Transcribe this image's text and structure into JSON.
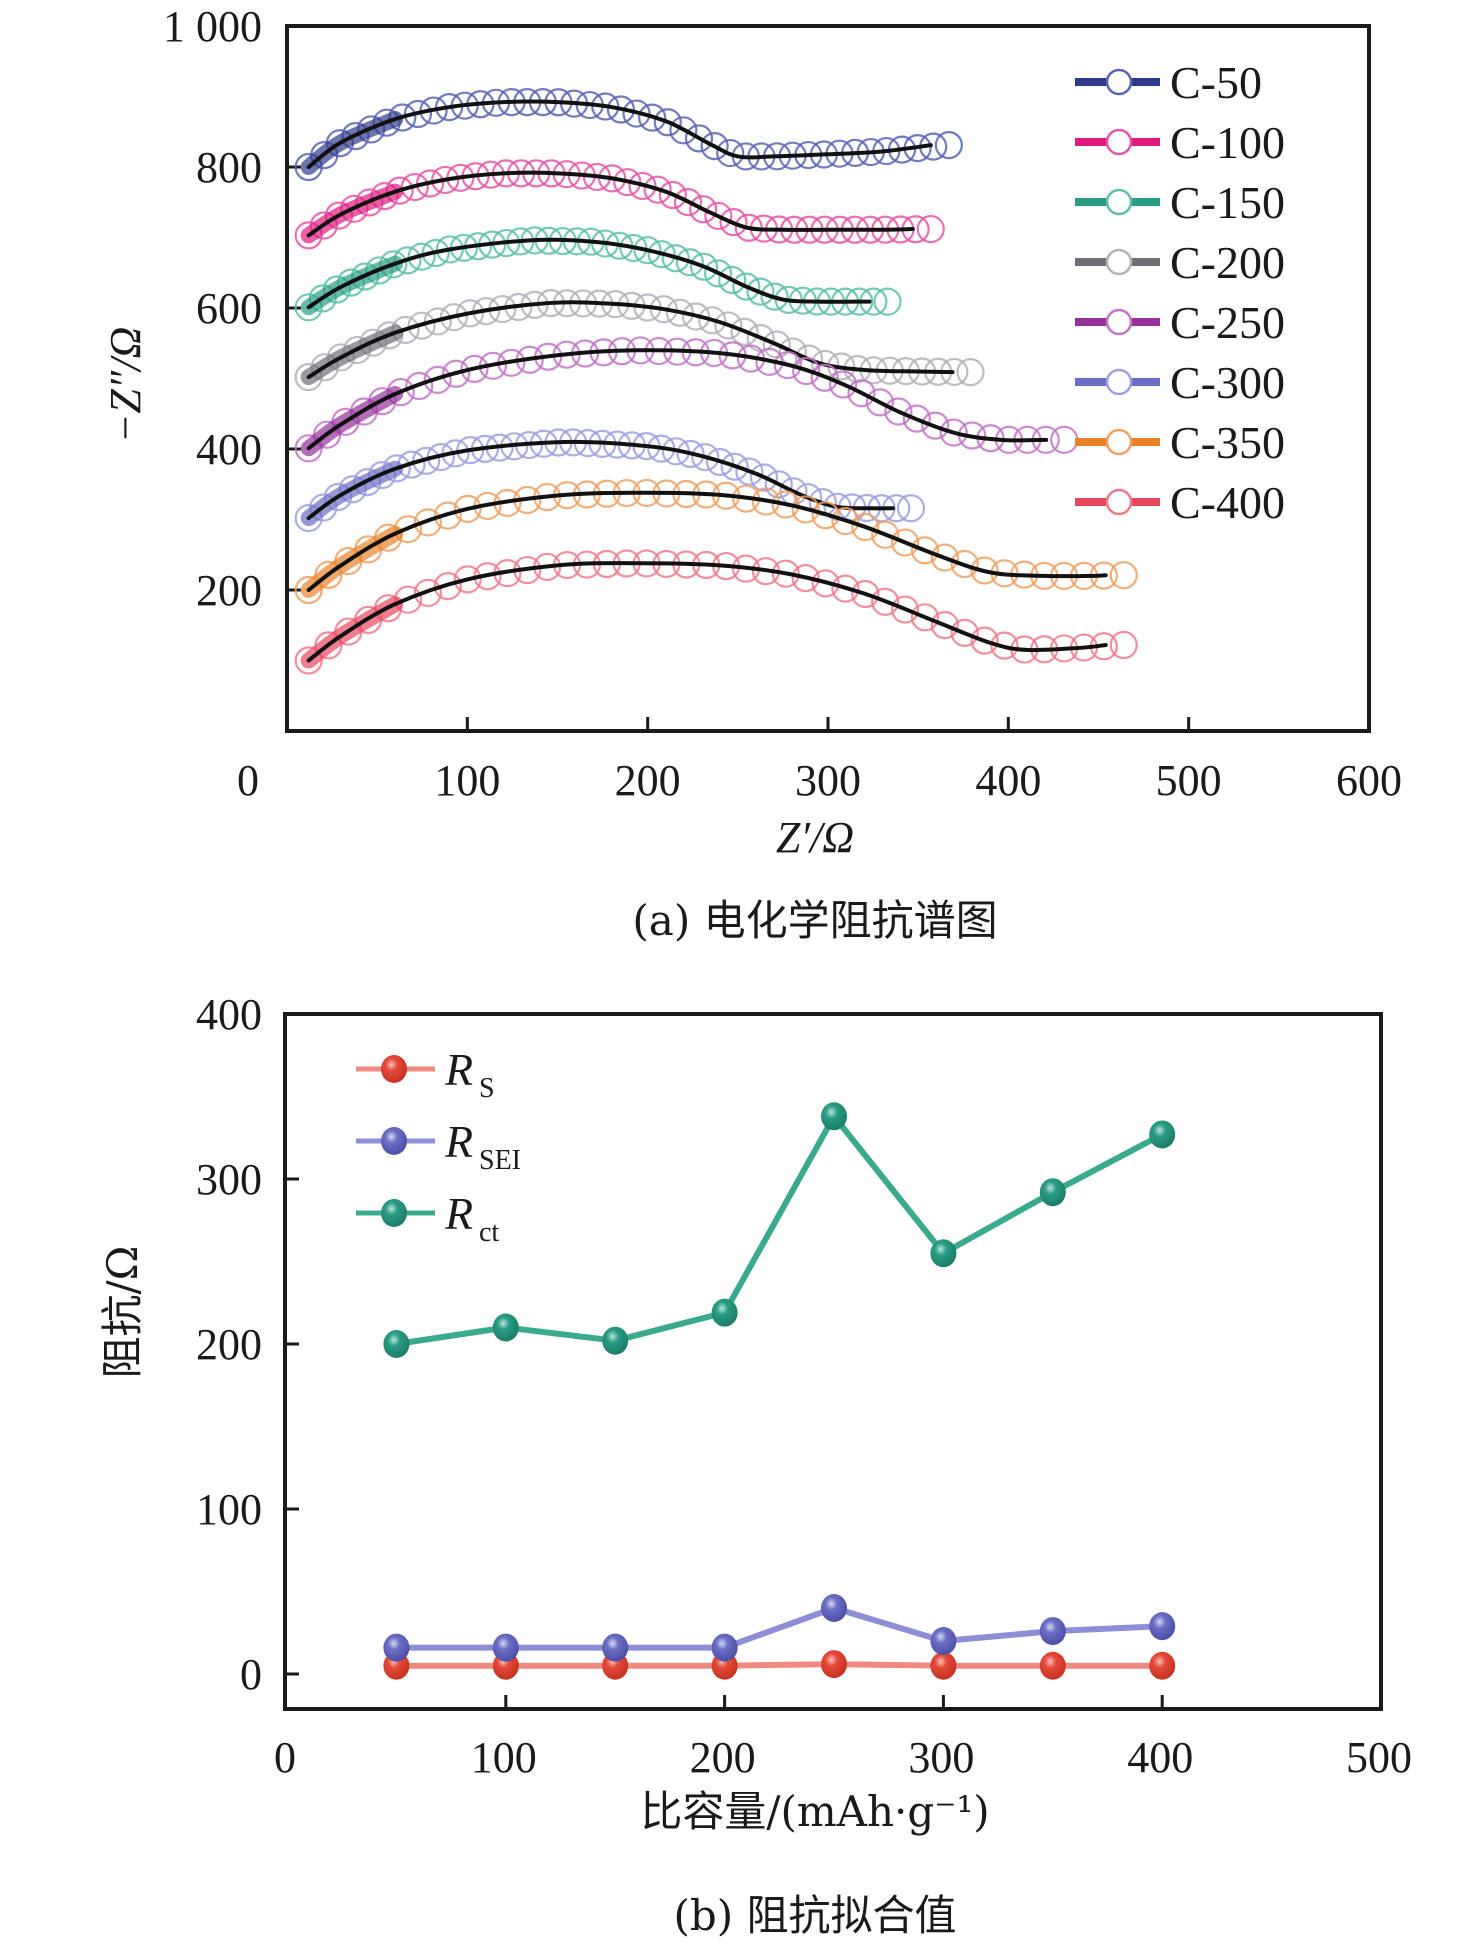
{
  "chart_data": [
    {
      "id": "a",
      "type": "line",
      "caption": "(a) 电化学阻抗谱图",
      "title": "",
      "xlabel": "Z′/Ω",
      "ylabel": "−Z″/Ω",
      "xlim": [
        0,
        600
      ],
      "ylim": [
        0,
        1000
      ],
      "xticks": [
        0,
        100,
        200,
        300,
        400,
        500,
        600
      ],
      "xtick_labels": [
        "0",
        "100",
        "200",
        "300",
        "400",
        "500",
        "600"
      ],
      "yticks": [
        200,
        400,
        600,
        800,
        1000
      ],
      "ytick_labels": [
        "200",
        "400",
        "600",
        "800",
        "1 000"
      ],
      "grid": false,
      "legend_position": "top-right",
      "marker": "open-circle",
      "fit_line_color": "#111111",
      "series": [
        {
          "name": "C-50",
          "color": "#2e3a8c",
          "marker_color": "#5a64b4",
          "x": [
            12,
            30,
            60,
            90,
            120,
            150,
            180,
            210,
            235,
            250,
            270,
            300,
            330,
            367
          ],
          "y": [
            800,
            835,
            868,
            885,
            892,
            892,
            885,
            865,
            832,
            815,
            815,
            818,
            822,
            831
          ]
        },
        {
          "name": "C-100",
          "color": "#e0197d",
          "marker_color": "#e556a8",
          "x": [
            12,
            30,
            60,
            90,
            120,
            150,
            180,
            210,
            235,
            255,
            275,
            300,
            330,
            357
          ],
          "y": [
            703,
            733,
            765,
            783,
            791,
            791,
            784,
            765,
            735,
            714,
            711,
            711,
            711,
            712
          ]
        },
        {
          "name": "C-150",
          "color": "#2a9c84",
          "marker_color": "#5cc0a8",
          "x": [
            12,
            30,
            60,
            90,
            135,
            170,
            200,
            230,
            255,
            275,
            295,
            315,
            333
          ],
          "y": [
            601,
            630,
            663,
            683,
            696,
            694,
            682,
            660,
            630,
            612,
            609,
            609,
            609
          ]
        },
        {
          "name": "C-200",
          "color": "#6b6f75",
          "marker_color": "#b0b3b8",
          "x": [
            12,
            30,
            60,
            100,
            145,
            180,
            210,
            240,
            270,
            295,
            320,
            350,
            379
          ],
          "y": [
            502,
            530,
            565,
            592,
            607,
            606,
            598,
            580,
            550,
            522,
            512,
            510,
            509
          ]
        },
        {
          "name": "C-250",
          "color": "#94319a",
          "marker_color": "#c373c8",
          "x": [
            12,
            30,
            60,
            100,
            150,
            194,
            240,
            280,
            310,
            340,
            370,
            396,
            431
          ],
          "y": [
            401,
            435,
            478,
            512,
            533,
            540,
            536,
            518,
            490,
            452,
            423,
            413,
            413
          ]
        },
        {
          "name": "C-300",
          "color": "#6b6ec4",
          "marker_color": "#9e9fe0",
          "x": [
            12,
            30,
            60,
            100,
            154,
            200,
            230,
            260,
            285,
            305,
            325,
            346
          ],
          "y": [
            302,
            335,
            372,
            398,
            410,
            404,
            390,
            365,
            335,
            318,
            316,
            316
          ]
        },
        {
          "name": "C-350",
          "color": "#e8832a",
          "marker_color": "#f0a060",
          "x": [
            12,
            30,
            60,
            100,
            150,
            194,
            240,
            280,
            320,
            360,
            390,
            420,
            446,
            464
          ],
          "y": [
            200,
            235,
            280,
            315,
            334,
            338,
            335,
            320,
            290,
            250,
            225,
            220,
            220,
            221
          ]
        },
        {
          "name": "C-400",
          "color": "#e8485e",
          "marker_color": "#f07a8c",
          "x": [
            12,
            30,
            60,
            100,
            150,
            194,
            240,
            280,
            320,
            360,
            390,
            410,
            440,
            464
          ],
          "y": [
            100,
            135,
            180,
            215,
            235,
            238,
            235,
            222,
            195,
            155,
            125,
            115,
            118,
            122
          ]
        }
      ]
    },
    {
      "id": "b",
      "type": "line",
      "caption": "(b) 阻抗拟合值",
      "title": "",
      "xlabel": "比容量/(mAh·g⁻¹)",
      "ylabel": "阻抗/Ω",
      "xlim": [
        0,
        500
      ],
      "ylim": [
        0,
        400
      ],
      "xticks": [
        0,
        100,
        200,
        300,
        400,
        500
      ],
      "xtick_labels": [
        "0",
        "100",
        "200",
        "300",
        "400",
        "500"
      ],
      "yticks": [
        0,
        100,
        200,
        300,
        400
      ],
      "ytick_labels": [
        "0",
        "100",
        "200",
        "300",
        "400"
      ],
      "grid": false,
      "legend_position": "top-left",
      "marker": "filled-sphere",
      "x": [
        50,
        100,
        150,
        200,
        250,
        300,
        350,
        400
      ],
      "series": [
        {
          "name": "R",
          "sub": "S",
          "color": "#e5493a",
          "line_color": "#f08a80",
          "values": [
            5,
            5,
            5,
            5,
            6,
            5,
            5,
            5
          ]
        },
        {
          "name": "R",
          "sub": "SEI",
          "color": "#6b6ec4",
          "line_color": "#8c8fd6",
          "values": [
            16,
            16,
            16,
            16,
            40,
            20,
            26,
            29
          ]
        },
        {
          "name": "R",
          "sub": "ct",
          "color": "#2a9c84",
          "line_color": "#3aa98e",
          "values": [
            200,
            210,
            202,
            219,
            338,
            255,
            292,
            327
          ]
        }
      ]
    }
  ]
}
